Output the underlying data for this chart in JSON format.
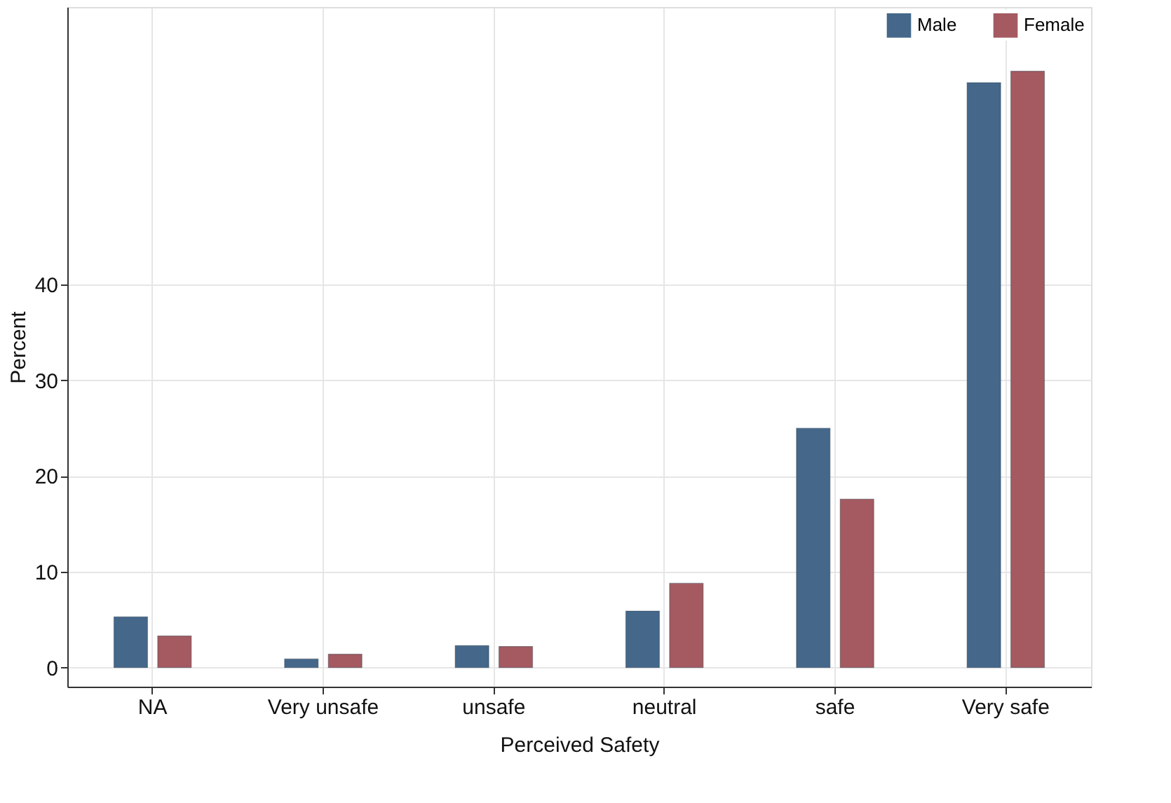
{
  "chart_data": {
    "type": "bar",
    "xlabel": "Perceived Safety",
    "ylabel": "Percent",
    "categories": [
      "NA",
      "Very unsafe",
      "unsafe",
      "neutral",
      "safe",
      "Very safe"
    ],
    "series": [
      {
        "name": "Male",
        "color": "#44678a",
        "values": [
          5.3,
          0.9,
          2.3,
          5.9,
          25.0,
          61.1
        ]
      },
      {
        "name": "Female",
        "color": "#a45a60",
        "values": [
          3.3,
          1.4,
          2.2,
          8.8,
          17.6,
          62.3
        ]
      }
    ],
    "ylim": [
      -2,
      69
    ],
    "yticks": [
      0,
      10,
      20,
      30,
      40
    ],
    "grid": true,
    "legend": "top right"
  }
}
